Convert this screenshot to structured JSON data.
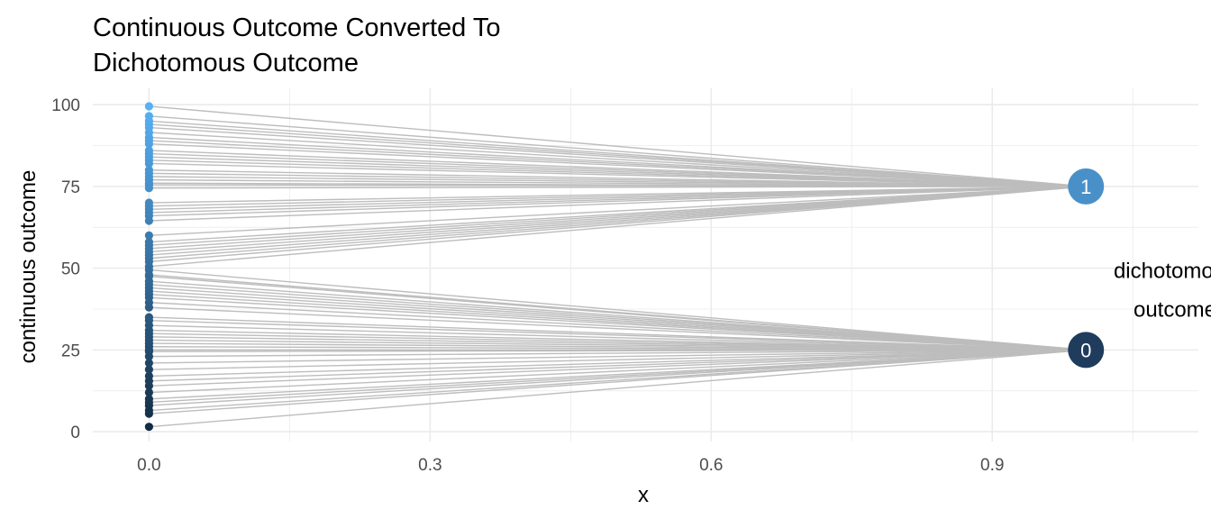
{
  "chart_data": {
    "type": "scatter",
    "title_line1": "Continuous Outcome Converted To",
    "title_line2": "Dichotomous Outcome",
    "xlabel": "x",
    "ylabel": "continuous outcome",
    "xlim": [
      -0.06,
      1.12
    ],
    "ylim": [
      -3,
      105
    ],
    "x_ticks": [
      0.0,
      0.3,
      0.6,
      0.9
    ],
    "x_tick_labels": [
      "0.0",
      "0.3",
      "0.6",
      "0.9"
    ],
    "y_ticks": [
      0,
      25,
      50,
      75,
      100
    ],
    "y_tick_labels": [
      "0",
      "25",
      "50",
      "75",
      "100"
    ],
    "grid": true,
    "annotation_line1": "dichotomous",
    "annotation_line2": "outcome",
    "annotation_position": [
      1.095,
      47
    ],
    "threshold": 50,
    "colors": {
      "line": "#bdbdbd",
      "grid": "#ebebeb",
      "low": "#132b43",
      "high": "#56b1f7",
      "node_1": "#4a90c8",
      "node_0": "#1f3c5c"
    },
    "nodes": [
      {
        "label": "1",
        "x": 1.0,
        "y": 75
      },
      {
        "label": "0",
        "x": 1.0,
        "y": 25
      }
    ],
    "continuous_points": {
      "x": 0,
      "y": [
        1.5,
        5.5,
        6.5,
        8,
        9,
        10,
        12,
        14,
        15.5,
        17,
        19,
        21,
        23,
        24.5,
        25,
        26,
        27,
        28,
        29,
        30,
        31,
        32.5,
        34,
        35,
        38,
        39.5,
        41,
        42,
        43,
        44,
        45,
        46,
        47.5,
        48,
        49.5,
        50.5,
        52,
        53,
        54,
        55,
        56,
        57,
        58,
        60,
        64.5,
        66,
        67,
        68,
        69,
        70,
        74.5,
        75.5,
        76,
        77,
        78,
        79,
        80,
        82,
        83,
        84,
        85,
        86,
        88,
        89,
        90,
        91.5,
        93,
        94,
        95,
        96.5,
        99.5
      ]
    }
  }
}
